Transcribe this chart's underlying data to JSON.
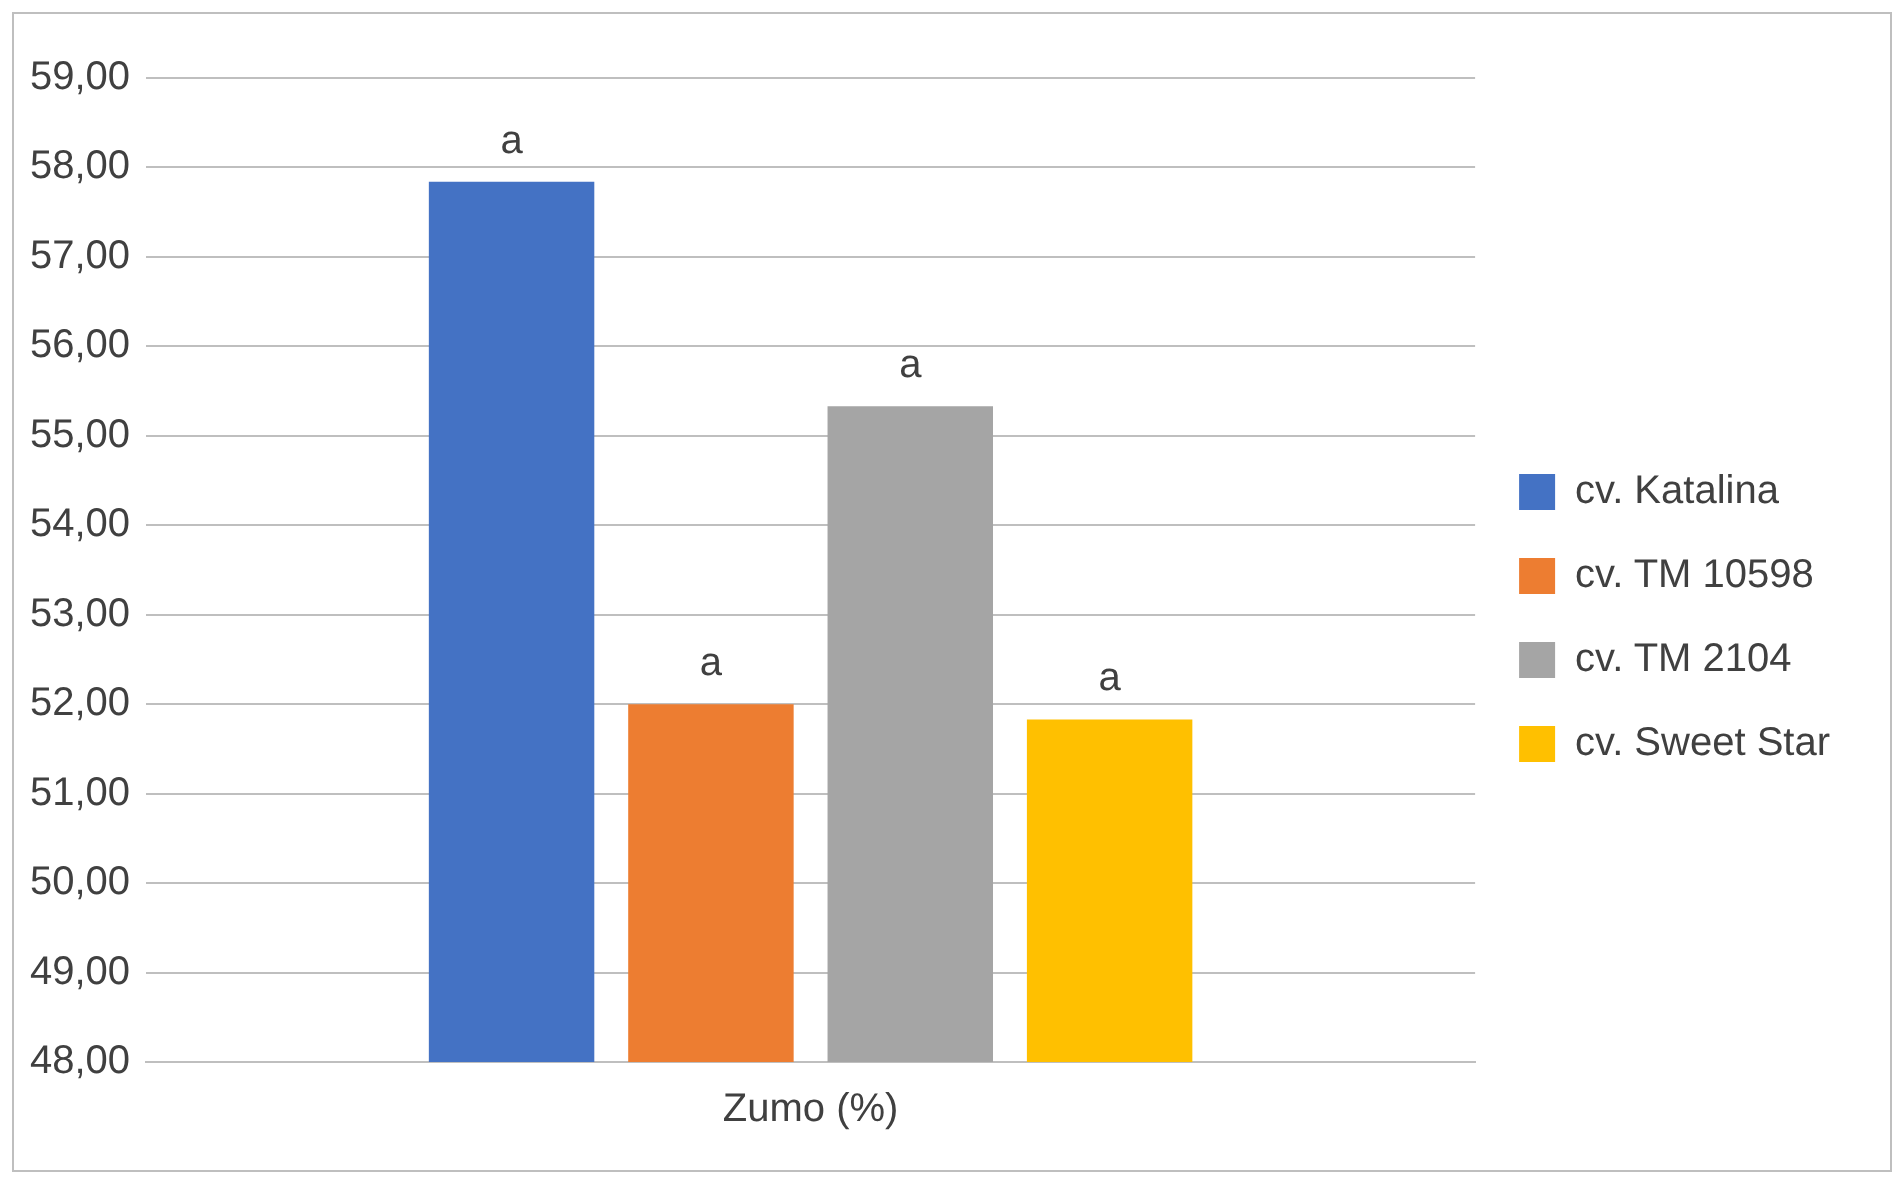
{
  "chart_data": {
    "type": "bar",
    "categories": [
      "Zumo (%)"
    ],
    "series": [
      {
        "name": "cv. Katalina",
        "color": "#4472c4",
        "values": [
          57.84
        ],
        "value_labels": [
          "a"
        ]
      },
      {
        "name": "cv. TM 10598",
        "color": "#ed7d31",
        "values": [
          52.0
        ],
        "value_labels": [
          "a"
        ]
      },
      {
        "name": "cv. TM 2104",
        "color": "#a5a5a5",
        "values": [
          55.33
        ],
        "value_labels": [
          "a"
        ]
      },
      {
        "name": "cv. Sweet Star",
        "color": "#ffc000",
        "values": [
          51.83
        ],
        "value_labels": [
          "a"
        ]
      }
    ],
    "ylim": [
      48,
      59
    ],
    "yticks": [
      {
        "value": 48,
        "label": "48,00"
      },
      {
        "value": 49,
        "label": "49,00"
      },
      {
        "value": 50,
        "label": "50,00"
      },
      {
        "value": 51,
        "label": "51,00"
      },
      {
        "value": 52,
        "label": "52,00"
      },
      {
        "value": 53,
        "label": "53,00"
      },
      {
        "value": 54,
        "label": "54,00"
      },
      {
        "value": 55,
        "label": "55,00"
      },
      {
        "value": 56,
        "label": "56,00"
      },
      {
        "value": 57,
        "label": "57,00"
      },
      {
        "value": 58,
        "label": "58,00"
      },
      {
        "value": 59,
        "label": "59,00"
      }
    ],
    "grid": "y",
    "legend": "right"
  }
}
